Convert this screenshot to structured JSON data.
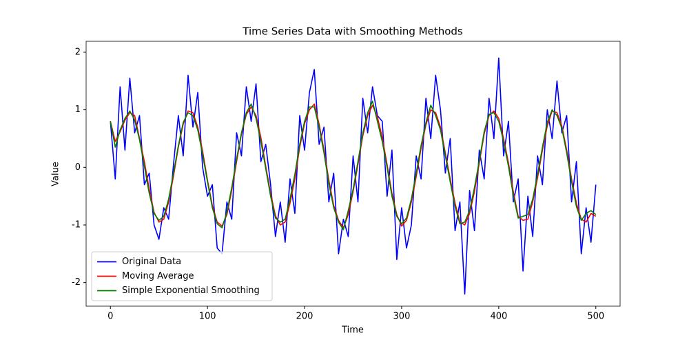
{
  "chart_data": {
    "type": "line",
    "title": "Time Series Data with Smoothing Methods",
    "xlabel": "Time",
    "ylabel": "Value",
    "x": [
      0,
      5,
      10,
      15,
      20,
      25,
      30,
      35,
      40,
      45,
      50,
      55,
      60,
      65,
      70,
      75,
      80,
      85,
      90,
      95,
      100,
      105,
      110,
      115,
      120,
      125,
      130,
      135,
      140,
      145,
      150,
      155,
      160,
      165,
      170,
      175,
      180,
      185,
      190,
      195,
      200,
      205,
      210,
      215,
      220,
      225,
      230,
      235,
      240,
      245,
      250,
      255,
      260,
      265,
      270,
      275,
      280,
      285,
      290,
      295,
      300,
      305,
      310,
      315,
      320,
      325,
      330,
      335,
      340,
      345,
      350,
      355,
      360,
      365,
      370,
      375,
      380,
      385,
      390,
      395,
      400,
      405,
      410,
      415,
      420,
      425,
      430,
      435,
      440,
      445,
      450,
      455,
      460,
      465,
      470,
      475,
      480,
      485,
      490,
      495,
      500
    ],
    "series": [
      {
        "name": "Original Data",
        "color": "#0000ff",
        "values": [
          0.8,
          -0.2,
          1.4,
          0.3,
          1.55,
          0.6,
          0.9,
          -0.3,
          -0.1,
          -1.0,
          -1.25,
          -0.7,
          -0.9,
          0.05,
          0.9,
          0.2,
          1.6,
          0.7,
          1.3,
          0.0,
          -0.5,
          -0.3,
          -1.4,
          -1.5,
          -0.6,
          -0.9,
          0.6,
          0.2,
          1.4,
          0.8,
          1.45,
          0.1,
          0.4,
          -0.3,
          -1.2,
          -0.6,
          -1.3,
          -0.2,
          -0.8,
          0.9,
          0.3,
          1.3,
          1.7,
          0.4,
          0.7,
          -0.6,
          -0.1,
          -1.5,
          -0.9,
          -1.2,
          0.2,
          -0.6,
          1.2,
          0.6,
          1.4,
          0.9,
          0.8,
          -0.5,
          0.3,
          -1.6,
          -0.7,
          -1.4,
          -1.0,
          0.2,
          -0.2,
          1.2,
          0.5,
          1.6,
          1.0,
          -0.1,
          0.5,
          -1.1,
          -0.6,
          -2.2,
          -0.4,
          -1.1,
          0.3,
          -0.2,
          1.2,
          0.5,
          1.9,
          0.2,
          0.8,
          -0.6,
          -0.2,
          -1.8,
          -0.5,
          -1.2,
          0.2,
          -0.3,
          1.0,
          0.5,
          1.5,
          0.6,
          0.9,
          -0.6,
          0.1,
          -1.5,
          -0.7,
          -1.3,
          -0.3
        ]
      },
      {
        "name": "Moving Average",
        "color": "#ff0000",
        "values": [
          0.8,
          0.45,
          0.62,
          0.82,
          0.95,
          0.9,
          0.5,
          0.1,
          -0.38,
          -0.78,
          -0.95,
          -0.9,
          -0.6,
          -0.15,
          0.35,
          0.75,
          0.98,
          0.95,
          0.7,
          0.28,
          -0.22,
          -0.66,
          -0.95,
          -1.02,
          -0.82,
          -0.4,
          0.1,
          0.58,
          0.92,
          1.05,
          0.9,
          0.52,
          0.02,
          -0.45,
          -0.84,
          -1.0,
          -0.95,
          -0.62,
          -0.2,
          0.35,
          0.76,
          1.0,
          1.1,
          0.75,
          0.3,
          -0.22,
          -0.66,
          -0.92,
          -1.05,
          -0.82,
          -0.42,
          0.05,
          0.55,
          0.9,
          1.08,
          0.88,
          0.52,
          0.05,
          -0.45,
          -0.82,
          -1.02,
          -0.92,
          -0.6,
          -0.16,
          0.33,
          0.74,
          1.0,
          0.95,
          0.7,
          0.25,
          -0.2,
          -0.62,
          -0.95,
          -1.0,
          -0.8,
          -0.42,
          0.08,
          0.58,
          0.9,
          0.98,
          0.85,
          0.5,
          0.08,
          -0.42,
          -0.85,
          -0.92,
          -0.9,
          -0.6,
          -0.18,
          0.3,
          0.72,
          0.98,
          0.95,
          0.72,
          0.3,
          -0.2,
          -0.62,
          -0.9,
          -0.95,
          -0.8,
          -0.85
        ]
      },
      {
        "name": "Simple Exponential Smoothing",
        "color": "#008000",
        "values": [
          0.8,
          0.35,
          0.65,
          0.85,
          0.98,
          0.82,
          0.48,
          0.02,
          -0.45,
          -0.8,
          -0.92,
          -0.85,
          -0.55,
          -0.1,
          0.38,
          0.78,
          0.95,
          0.9,
          0.65,
          0.22,
          -0.25,
          -0.7,
          -0.98,
          -1.05,
          -0.78,
          -0.35,
          0.15,
          0.6,
          0.95,
          1.1,
          0.85,
          0.45,
          -0.02,
          -0.5,
          -0.88,
          -0.95,
          -0.9,
          -0.55,
          -0.12,
          0.4,
          0.8,
          1.05,
          1.05,
          0.7,
          0.25,
          -0.28,
          -0.7,
          -0.95,
          -1.08,
          -0.75,
          -0.38,
          0.1,
          0.6,
          0.95,
          1.15,
          0.8,
          0.45,
          0.0,
          -0.5,
          -0.85,
          -0.98,
          -0.88,
          -0.55,
          -0.1,
          0.38,
          0.78,
          1.08,
          0.9,
          0.65,
          0.2,
          -0.25,
          -0.68,
          -0.98,
          -0.95,
          -0.75,
          -0.35,
          0.12,
          0.62,
          0.92,
          0.95,
          0.8,
          0.45,
          0.02,
          -0.48,
          -0.88,
          -0.85,
          -0.82,
          -0.55,
          -0.12,
          0.35,
          0.78,
          1.0,
          0.9,
          0.68,
          0.25,
          -0.25,
          -0.68,
          -0.92,
          -0.8,
          -0.75,
          -0.82
        ]
      }
    ],
    "xlim": [
      -25,
      525
    ],
    "ylim": [
      -2.41,
      2.19
    ],
    "xticks": [
      0,
      100,
      200,
      300,
      400,
      500
    ],
    "yticks": [
      -2,
      -1,
      0,
      1,
      2
    ],
    "grid": false,
    "legend": "lower left"
  }
}
